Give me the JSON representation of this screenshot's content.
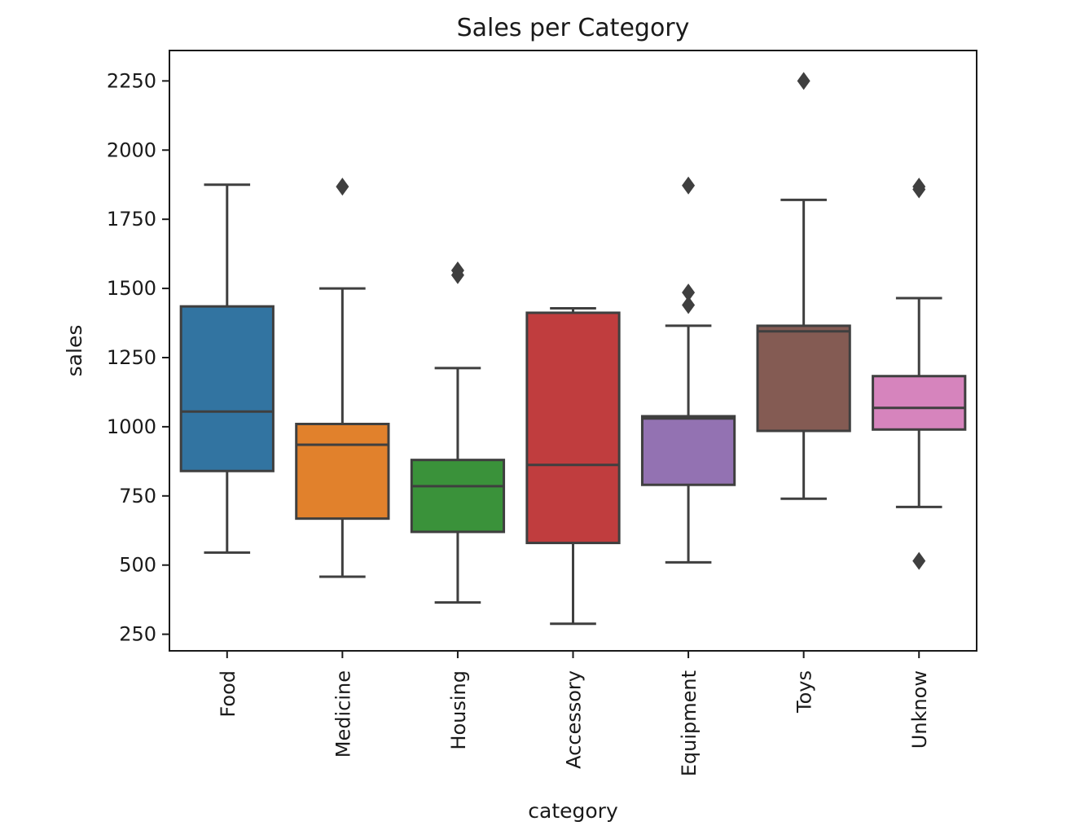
{
  "chart_data": {
    "type": "box",
    "title": "Sales per Category",
    "xlabel": "category",
    "ylabel": "sales",
    "ylim": [
      190,
      2360
    ],
    "yticks": [
      250,
      500,
      750,
      1000,
      1250,
      1500,
      1750,
      2000,
      2250
    ],
    "grid": false,
    "legend": "none",
    "line_color": "#3f3f3f",
    "categories": [
      "Food",
      "Medicine",
      "Housing",
      "Accessory",
      "Equipment",
      "Toys",
      "Unknow"
    ],
    "boxes": [
      {
        "category": "Food",
        "color": "#3274a1",
        "whisker_low": 545,
        "q1": 840,
        "median": 1055,
        "q3": 1435,
        "whisker_high": 1875,
        "outliers": []
      },
      {
        "category": "Medicine",
        "color": "#e1812c",
        "whisker_low": 458,
        "q1": 668,
        "median": 935,
        "q3": 1010,
        "whisker_high": 1500,
        "outliers": [
          1868
        ]
      },
      {
        "category": "Housing",
        "color": "#3a923a",
        "whisker_low": 365,
        "q1": 620,
        "median": 785,
        "q3": 880,
        "whisker_high": 1212,
        "outliers": [
          1548,
          1565
        ]
      },
      {
        "category": "Accessory",
        "color": "#c03d3e",
        "whisker_low": 288,
        "q1": 580,
        "median": 862,
        "q3": 1412,
        "whisker_high": 1428,
        "outliers": []
      },
      {
        "category": "Equipment",
        "color": "#9372b2",
        "whisker_low": 510,
        "q1": 790,
        "median": 1030,
        "q3": 1038,
        "whisker_high": 1365,
        "outliers": [
          1440,
          1485,
          1872
        ]
      },
      {
        "category": "Toys",
        "color": "#845b53",
        "whisker_low": 740,
        "q1": 985,
        "median": 1345,
        "q3": 1365,
        "whisker_high": 1820,
        "outliers": [
          2250
        ]
      },
      {
        "category": "Unknow",
        "color": "#d684bd",
        "whisker_low": 710,
        "q1": 990,
        "median": 1068,
        "q3": 1183,
        "whisker_high": 1465,
        "outliers": [
          515,
          1858,
          1868
        ]
      }
    ]
  }
}
